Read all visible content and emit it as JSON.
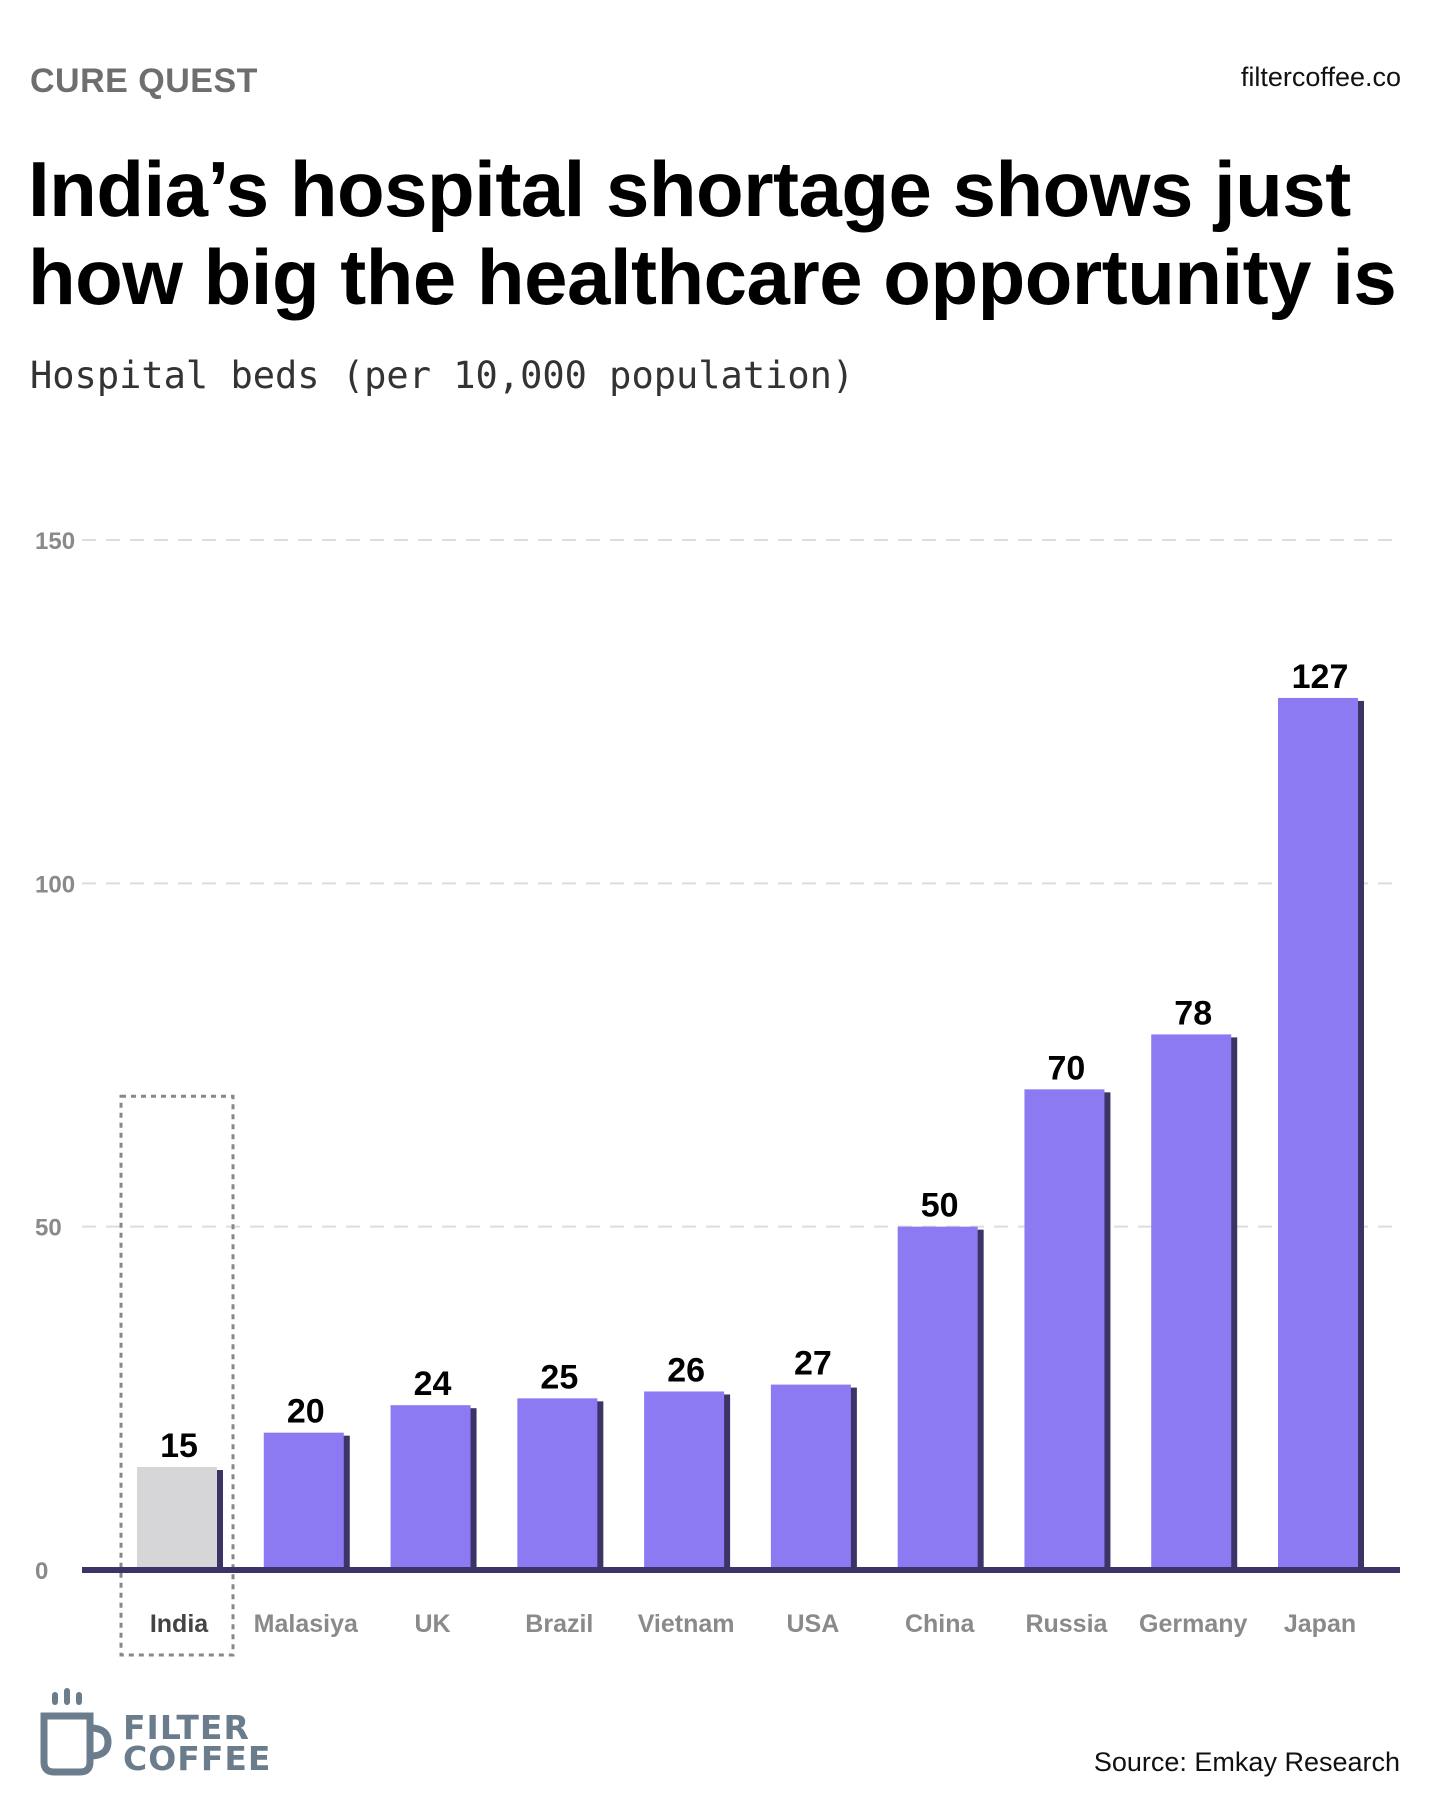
{
  "header": {
    "kicker": "CURE QUEST",
    "site": "filtercoffee.co",
    "title": "India’s hospital shortage shows just how big the healthcare opportunity is",
    "subtitle": "Hospital beds (per 10,000 population)"
  },
  "footer": {
    "logo_line1": "FILTER",
    "logo_line2": "COFFEE",
    "source": "Source: Emkay Research"
  },
  "colors": {
    "bar": "#8b7af2",
    "bar_shadow": "#3c3466",
    "highlight_bar": "#d6d6d8",
    "axis": "#3c3466",
    "grid": "#dddddd",
    "logo": "#6b7d8c"
  },
  "chart_data": {
    "type": "bar",
    "categories": [
      "India",
      "Malasiya",
      "UK",
      "Brazil",
      "Vietnam",
      "USA",
      "China",
      "Russia",
      "Germany",
      "Japan"
    ],
    "values": [
      15,
      20,
      24,
      25,
      26,
      27,
      50,
      70,
      78,
      127
    ],
    "highlight": "India",
    "ylim": [
      0,
      150
    ],
    "yticks": [
      0,
      50,
      100,
      150
    ],
    "grid": true,
    "xlabel": "",
    "ylabel": ""
  }
}
